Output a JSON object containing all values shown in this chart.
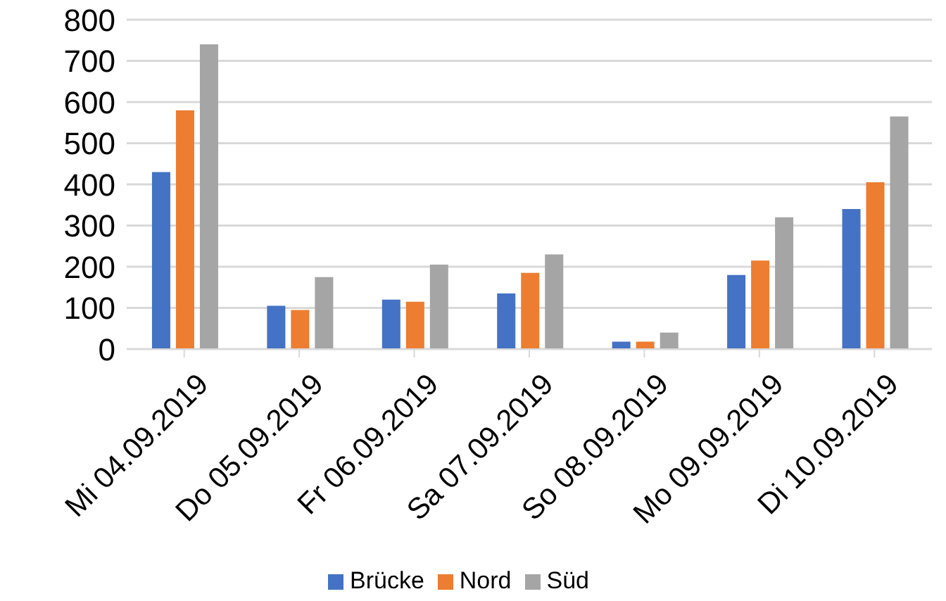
{
  "chart_data": {
    "type": "bar",
    "categories": [
      "Mi 04.09.2019",
      "Do 05.09.2019",
      "Fr 06.09.2019",
      "Sa 07.09.2019",
      "So 08.09.2019",
      "Mo 09.09.2019",
      "Di 10.09.2019"
    ],
    "series": [
      {
        "name": "Brücke",
        "color": "#4472c4",
        "values": [
          430,
          105,
          120,
          135,
          18,
          180,
          340
        ]
      },
      {
        "name": "Nord",
        "color": "#ed7d31",
        "values": [
          580,
          95,
          115,
          185,
          18,
          215,
          405
        ]
      },
      {
        "name": "Süd",
        "color": "#a5a5a5",
        "values": [
          740,
          175,
          205,
          230,
          40,
          320,
          565
        ]
      }
    ],
    "ylim": [
      0,
      800
    ],
    "yticks": [
      0,
      100,
      200,
      300,
      400,
      500,
      600,
      700,
      800
    ],
    "grid": "y",
    "legend": "bottom"
  }
}
